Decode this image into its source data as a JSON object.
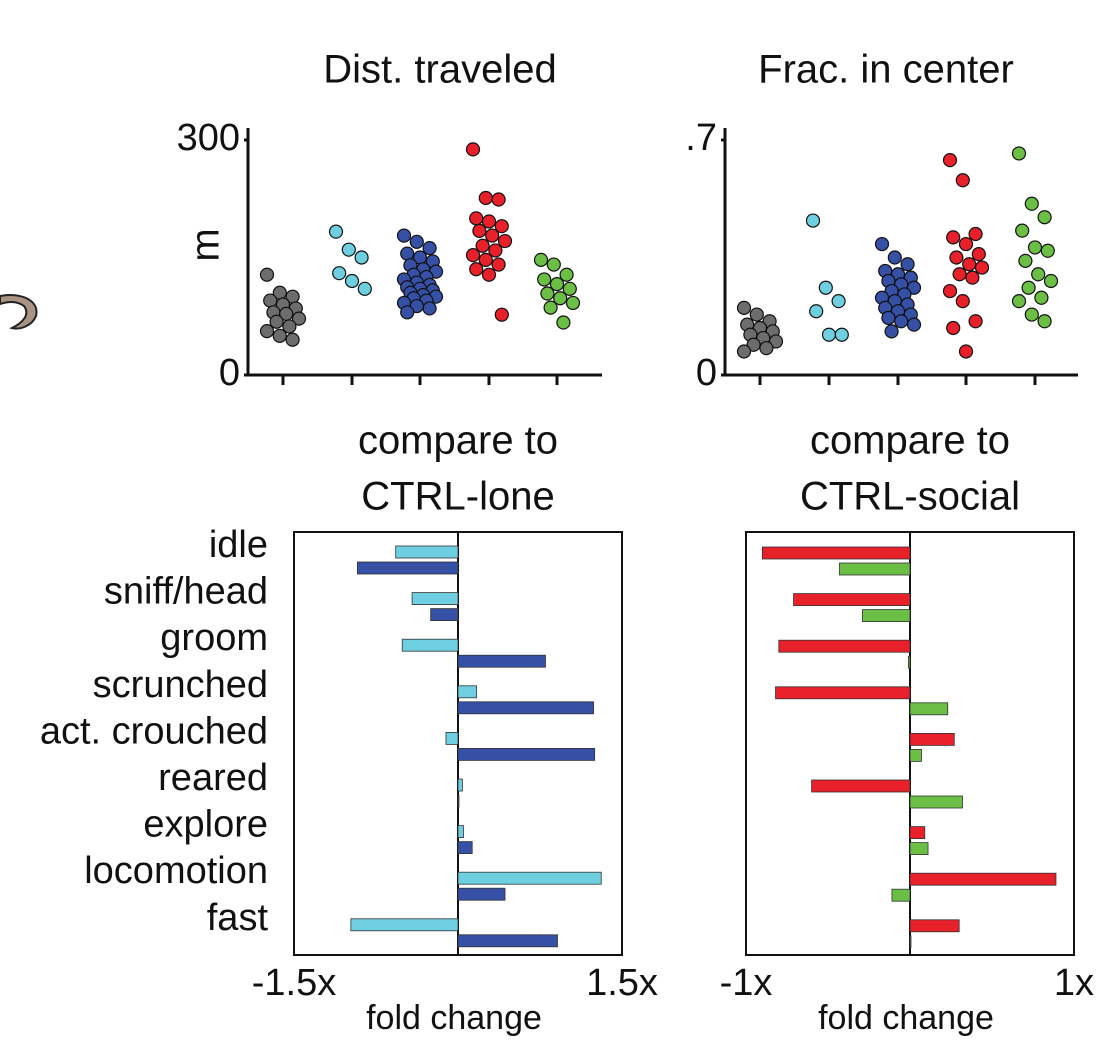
{
  "chart_data": [
    {
      "type": "strip",
      "title": "Dist. traveled",
      "ylabel": "m",
      "ylim": [
        0,
        300
      ],
      "yticks": [
        0,
        300
      ],
      "series": [
        {
          "color": "#6d6d6d",
          "values": [
            128,
            105,
            100,
            95,
            90,
            85,
            80,
            78,
            72,
            68,
            62,
            56,
            50,
            45
          ]
        },
        {
          "color": "#6dcfe0",
          "values": [
            183,
            160,
            150,
            130,
            120,
            110
          ]
        },
        {
          "color": "#3550a5",
          "values": [
            178,
            170,
            162,
            155,
            150,
            145,
            140,
            135,
            132,
            128,
            125,
            122,
            118,
            115,
            112,
            110,
            108,
            105,
            102,
            100,
            98,
            95,
            92,
            88,
            85,
            80
          ]
        },
        {
          "color": "#e8202a",
          "values": [
            288,
            226,
            224,
            200,
            196,
            190,
            184,
            178,
            171,
            165,
            159,
            153,
            147,
            141,
            135,
            128,
            77
          ]
        },
        {
          "color": "#6bbf45",
          "values": [
            147,
            141,
            128,
            122,
            116,
            110,
            104,
            98,
            92,
            86,
            67
          ]
        }
      ]
    },
    {
      "type": "strip",
      "title": "Frac. in center",
      "ylim": [
        0,
        0.7
      ],
      "yticks": [
        0,
        {
          "value": 0.7,
          "label": ".7"
        }
      ],
      "series": [
        {
          "color": "#6d6d6d",
          "values": [
            0.2,
            0.18,
            0.16,
            0.15,
            0.14,
            0.13,
            0.12,
            0.11,
            0.1,
            0.09,
            0.08,
            0.07
          ]
        },
        {
          "color": "#6dcfe0",
          "values": [
            0.46,
            0.26,
            0.22,
            0.19,
            0.12,
            0.12
          ]
        },
        {
          "color": "#3550a5",
          "values": [
            0.39,
            0.35,
            0.33,
            0.31,
            0.3,
            0.29,
            0.28,
            0.27,
            0.26,
            0.25,
            0.24,
            0.23,
            0.22,
            0.21,
            0.2,
            0.19,
            0.18,
            0.17,
            0.16,
            0.15,
            0.13
          ]
        },
        {
          "color": "#e8202a",
          "values": [
            0.64,
            0.58,
            0.42,
            0.41,
            0.39,
            0.36,
            0.35,
            0.33,
            0.32,
            0.3,
            0.29,
            0.25,
            0.22,
            0.16,
            0.14,
            0.07
          ]
        },
        {
          "color": "#6bbf45",
          "values": [
            0.66,
            0.51,
            0.47,
            0.43,
            0.38,
            0.37,
            0.34,
            0.3,
            0.28,
            0.26,
            0.23,
            0.22,
            0.18,
            0.16
          ]
        }
      ]
    },
    {
      "type": "hbar",
      "title": [
        "compare to",
        "CTRL-lone"
      ],
      "xlabel": "fold change",
      "categories": [
        "idle",
        "sniff/head",
        "groom",
        "scrunched",
        "act. crouched",
        "reared",
        "explore",
        "locomotion",
        "fast"
      ],
      "xlim": [
        -1.5,
        1.5
      ],
      "xticks": [
        {
          "value": -1.5,
          "label": "-1.5x"
        },
        {
          "value": 1.5,
          "label": "1.5x"
        }
      ],
      "series": [
        {
          "color": "#6dcfe0",
          "values": [
            -0.57,
            -0.42,
            -0.51,
            0.17,
            -0.11,
            0.04,
            0.05,
            1.31,
            -0.98
          ]
        },
        {
          "color": "#3550a5",
          "values": [
            -0.92,
            -0.25,
            0.8,
            1.24,
            1.25,
            0,
            0.13,
            0.43,
            0.91
          ]
        }
      ]
    },
    {
      "type": "hbar",
      "title": [
        "compare to",
        "CTRL-social"
      ],
      "xlabel": "fold change",
      "xlim": [
        -1,
        1
      ],
      "xticks": [
        {
          "value": -1,
          "label": "-1x"
        },
        {
          "value": 1,
          "label": "1x"
        }
      ],
      "series": [
        {
          "color": "#e8202a",
          "values": [
            -0.9,
            -0.71,
            -0.8,
            -0.82,
            0.27,
            -0.6,
            0.09,
            0.89,
            0.3
          ]
        },
        {
          "color": "#6bbf45",
          "values": [
            -0.43,
            -0.29,
            -0.01,
            0.23,
            0.07,
            0.32,
            0.11,
            -0.11,
            0
          ]
        }
      ]
    }
  ]
}
